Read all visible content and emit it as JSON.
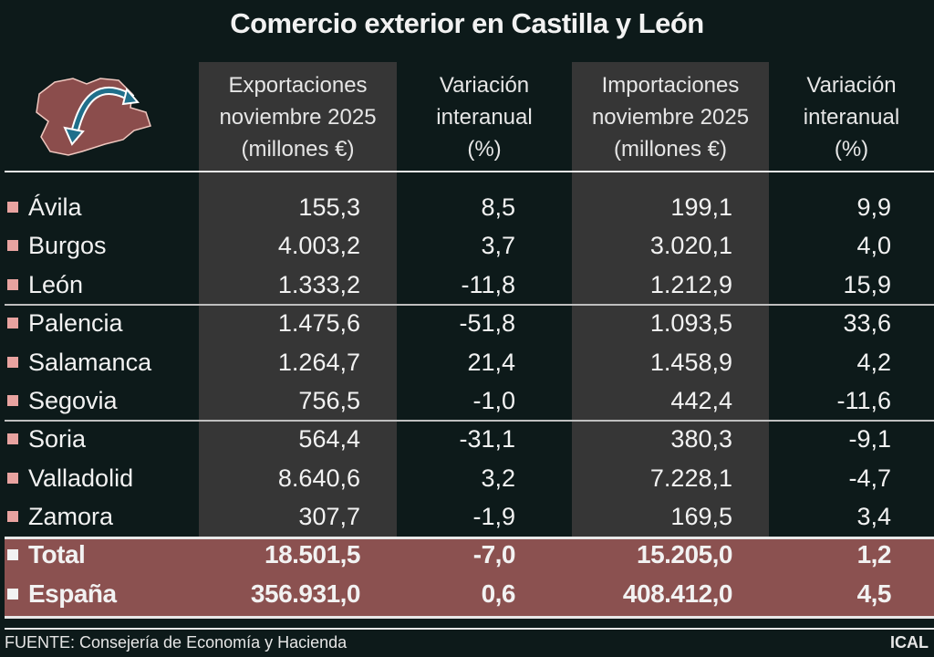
{
  "chart_data": {
    "type": "table",
    "title": "Comercio exterior en Castilla y León",
    "columns": [
      "",
      "Exportaciones noviembre 2025 (millones €)",
      "Variación interanual (%)",
      "Importaciones noviembre 2025 (millones €)",
      "Variación interanual (%)"
    ],
    "header_lines": [
      [
        "Exportaciones",
        "noviembre 2025",
        "(millones €)"
      ],
      [
        "Variación",
        "interanual",
        "(%)"
      ],
      [
        "Importaciones",
        "noviembre 2025",
        "(millones €)"
      ],
      [
        "Variación",
        "interanual",
        "(%)"
      ]
    ],
    "rows": [
      {
        "name": "Ávila",
        "values": [
          "155,3",
          "8,5",
          "199,1",
          "9,9"
        ]
      },
      {
        "name": "Burgos",
        "values": [
          "4.003,2",
          "3,7",
          "3.020,1",
          "4,0"
        ]
      },
      {
        "name": "León",
        "values": [
          "1.333,2",
          "-11,8",
          "1.212,9",
          "15,9"
        ]
      },
      {
        "name": "Palencia",
        "values": [
          "1.475,6",
          "-51,8",
          "1.093,5",
          "33,6"
        ]
      },
      {
        "name": "Salamanca",
        "values": [
          "1.264,7",
          "21,4",
          "1.458,9",
          "4,2"
        ]
      },
      {
        "name": "Segovia",
        "values": [
          "756,5",
          "-1,0",
          "442,4",
          "-11,6"
        ]
      },
      {
        "name": "Soria",
        "values": [
          "564,4",
          "-31,1",
          "380,3",
          "-9,1"
        ]
      },
      {
        "name": "Valladolid",
        "values": [
          "8.640,6",
          "3,2",
          "7.228,1",
          "-4,7"
        ]
      },
      {
        "name": "Zamora",
        "values": [
          "307,7",
          "-1,9",
          "169,5",
          "3,4"
        ]
      }
    ],
    "totals": [
      {
        "name": "Total",
        "values": [
          "18.501,5",
          "-7,0",
          "15.205,0",
          "1,2"
        ]
      },
      {
        "name": "España",
        "values": [
          "356.931,0",
          "0,6",
          "408.412,0",
          "4,5"
        ]
      }
    ]
  },
  "footer": {
    "source": "FUENTE: Consejería de Economía y Hacienda",
    "agency": "ICAL"
  },
  "colors": {
    "background": "#0d1a1a",
    "column_shade": "#363636",
    "highlight": "#8b5150",
    "bullet": "#e8a3a0",
    "arrow": "#1f6f8b"
  },
  "icons": {
    "logo": "castilla-y-leon-map-with-trade-arrow-icon"
  }
}
